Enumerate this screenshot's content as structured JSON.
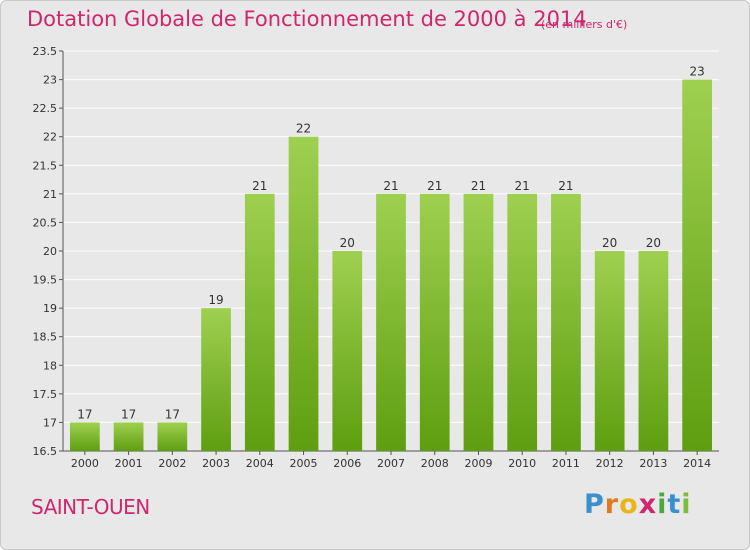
{
  "header": {
    "title": "Dotation Globale de Fonctionnement de 2000 à 2014",
    "unit": "(en milliers d'€)"
  },
  "footer": {
    "commune": "SAINT-OUEN",
    "logo": "Proxiti"
  },
  "colors": {
    "accent": "#d0256f",
    "bar_top": "#9fd050",
    "bar_bottom": "#5e9e10",
    "background": "#e8e8e8",
    "grid": "#ffffff"
  },
  "chart_data": {
    "type": "bar",
    "title": "Dotation Globale de Fonctionnement de 2000 à 2014",
    "subtitle": "(en milliers d'€)",
    "xlabel": "",
    "ylabel": "",
    "categories": [
      "2000",
      "2001",
      "2002",
      "2003",
      "2004",
      "2005",
      "2006",
      "2007",
      "2008",
      "2009",
      "2010",
      "2011",
      "2012",
      "2013",
      "2014"
    ],
    "values": [
      17,
      17,
      17,
      19,
      21,
      22,
      20,
      21,
      21,
      21,
      21,
      21,
      20,
      20,
      23
    ],
    "labels": [
      "17",
      "17",
      "17",
      "19",
      "21",
      "22",
      "20",
      "21",
      "21",
      "21",
      "21",
      "21",
      "20",
      "20",
      "23"
    ],
    "ylim": [
      16.5,
      23.5
    ],
    "yticks": [
      16.5,
      17,
      17.5,
      18,
      18.5,
      19,
      19.5,
      20,
      20.5,
      21,
      21.5,
      22,
      22.5,
      23,
      23.5
    ],
    "ytick_labels": [
      "16.5",
      "17",
      "17.5",
      "18",
      "18.5",
      "19",
      "19.5",
      "20",
      "20.5",
      "21",
      "21.5",
      "22",
      "22.5",
      "23",
      "23.5"
    ],
    "grid": true,
    "legend": "none"
  }
}
